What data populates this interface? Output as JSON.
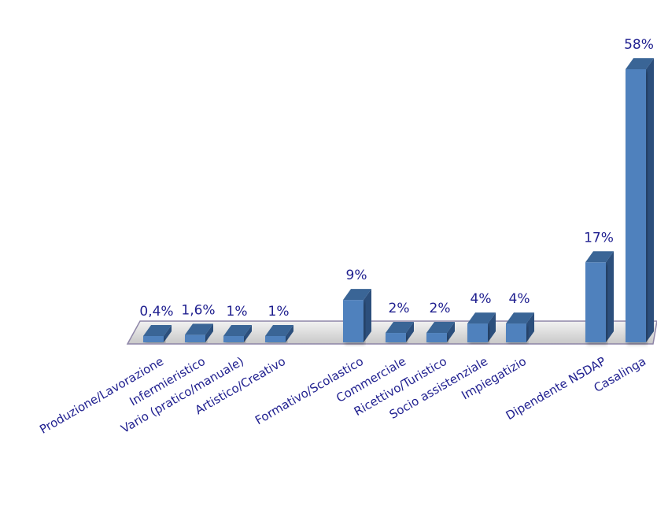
{
  "chart_data": {
    "type": "bar",
    "title": "",
    "xlabel": "",
    "ylabel": "",
    "ylim": [
      0,
      58
    ],
    "grid": false,
    "categories": [
      "Produzione/Lavorazione",
      "Infermieristico",
      "Vario (pratico/manuale)",
      "Artistico/Creativo",
      "Formativo/Scolastico",
      "Commerciale",
      "Ricettivo/Turistico",
      "Socio assistenziale",
      "Impiegatizio",
      "Dipendente NSDAP",
      "Casalinga"
    ],
    "values": [
      0.4,
      1.6,
      1,
      1,
      9,
      2,
      2,
      4,
      4,
      17,
      58
    ],
    "data_labels": [
      "0,4%",
      "1,6%",
      "1%",
      "1%",
      "9%",
      "2%",
      "2%",
      "4%",
      "4%",
      "17%",
      "58%"
    ],
    "colors": {
      "bar_front": "#4f81bd",
      "bar_side": "#2c4f7c",
      "bar_top": "#3a6596",
      "floor": "#d9d9d9",
      "floor_edge": "#8e86a8",
      "text": "#1f1f8f"
    }
  }
}
